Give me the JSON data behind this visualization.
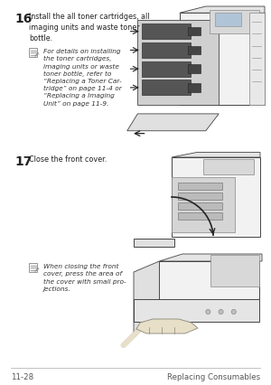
{
  "bg_color": "#ffffff",
  "footer_left": "11-28",
  "footer_right": "Replacing Consumables",
  "step16_number": "16",
  "step16_text": "Install the all toner cartridges, all\nimaging units and waste toner\nbottle.",
  "step16_note": "For details on installing\nthe toner cartridges,\nimaging units or waste\ntoner bottle, refer to\n“Replacing a Toner Car-\ntridge” on page 11-4 or\n“Replacing a Imaging\nUnit” on page 11-9.",
  "step17_number": "17",
  "step17_text": "Close the front cover.",
  "step17_note": "When closing the front\ncover, press the area of\nthe cover with small pro-\njections.",
  "text_color": "#222222",
  "note_color": "#333333",
  "footer_line_color": "#aaaaaa",
  "footer_text_color": "#555555",
  "light_gray": "#e8e8e8",
  "mid_gray": "#c0c0c0",
  "dark_gray": "#888888",
  "outline": "#444444"
}
